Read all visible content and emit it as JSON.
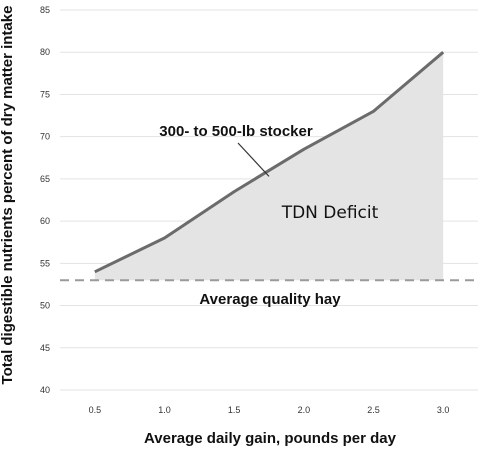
{
  "chart_data": {
    "type": "area",
    "title": "",
    "xlabel": "Average daily gain, pounds per day",
    "ylabel": "Total digestible nutrients percent of dry matter intake",
    "xlim": [
      0.25,
      3.25
    ],
    "ylim": [
      40,
      85
    ],
    "x_ticks": [
      "0.5",
      "1.0",
      "1.5",
      "2.0",
      "2.5",
      "3.0"
    ],
    "y_ticks": [
      "40",
      "45",
      "50",
      "55",
      "60",
      "65",
      "70",
      "75",
      "80",
      "85"
    ],
    "grid": true,
    "series": [
      {
        "name": "300- to 500-lb stocker",
        "x": [
          0.5,
          1.0,
          1.5,
          2.0,
          2.5,
          3.0
        ],
        "y": [
          54,
          58,
          63.5,
          68.5,
          73,
          80
        ]
      }
    ],
    "reference_line": {
      "label": "Average quality hay",
      "y": 53,
      "style": "dashed"
    },
    "shaded_region": {
      "label": "TDN Deficit",
      "between": "series and reference line"
    },
    "colors": {
      "line": "#6b6b6b",
      "fill": "#e4e4e4",
      "reference": "#9a9a9a",
      "grid": "#e3e3e3"
    }
  }
}
